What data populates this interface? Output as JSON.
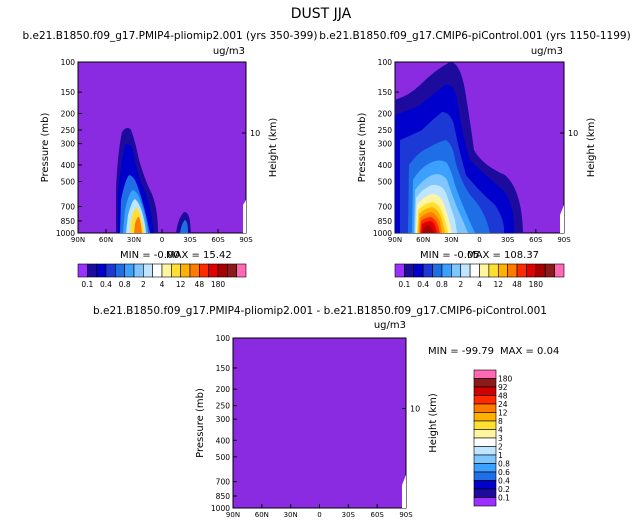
{
  "figure": {
    "title": "DUST JJA",
    "xticks": [
      "90N",
      "60N",
      "30N",
      "0",
      "30S",
      "60S",
      "90S"
    ],
    "yticks": [
      100,
      150,
      200,
      250,
      300,
      400,
      500,
      700,
      850,
      1000
    ],
    "ylabel": "Pressure (mb)",
    "right_label": "Height (km)",
    "right_tick": "10",
    "units": "ug/m3",
    "fill_color": "#8a2be2"
  },
  "colorbar": {
    "labels": [
      "0.1",
      "0.4",
      "0.8",
      "2",
      "4",
      "12",
      "48",
      "180"
    ],
    "colors": [
      "#9b30ff",
      "#1c0b9c",
      "#0000cd",
      "#1c39d6",
      "#1e6ee6",
      "#3ca0ff",
      "#7fc6ff",
      "#bfe5ff",
      "#ffffff",
      "#fff5a0",
      "#ffe030",
      "#ffb000",
      "#ff7b00",
      "#ff2a00",
      "#e00000",
      "#a80000",
      "#8b1a1a",
      "#ff69b4"
    ]
  },
  "colorbar_diff": {
    "labels": [
      "180",
      "92",
      "48",
      "24",
      "12",
      "8",
      "4",
      "3",
      "2",
      "1",
      "0.8",
      "0.6",
      "0.4",
      "0.2",
      "0.1"
    ],
    "colors": [
      "#ff69b4",
      "#8b1a1a",
      "#d00000",
      "#ff2a00",
      "#ff7b00",
      "#ffb000",
      "#ffe030",
      "#fff5a0",
      "#ffffff",
      "#bfe5ff",
      "#7fc6ff",
      "#3ca0ff",
      "#1e6ee6",
      "#0000cd",
      "#1c0b9c",
      "#9b30ff"
    ]
  },
  "chart_data": [
    {
      "type": "heatmap",
      "title": "b.e21.B1850.f09_g17.PMIP4-pliomip2.001 (yrs 350-399)",
      "xlabel": "",
      "ylabel": "Pressure (mb)",
      "units": "ug/m3",
      "min_label": "MIN =   -0.00",
      "max_label": "MAX =   15.42",
      "min": -0.0,
      "max": 15.42
    },
    {
      "type": "heatmap",
      "title": "b.e21.B1850.f09_g17.CMIP6-piControl.001 (yrs 1150-1199)",
      "xlabel": "",
      "ylabel": "Pressure (mb)",
      "units": "ug/m3",
      "min_label": "MIN =   -0.05",
      "max_label": "MAX =   108.37",
      "min": -0.05,
      "max": 108.37
    },
    {
      "type": "heatmap",
      "title": "b.e21.B1850.f09_g17.PMIP4-pliomip2.001 - b.e21.B1850.f09_g17.CMIP6-piControl.001",
      "xlabel": "",
      "ylabel": "Pressure (mb)",
      "units": "ug/m3",
      "min_label": "MIN = -99.79",
      "max_label": "MAX =    0.04",
      "min": -99.79,
      "max": 0.04
    }
  ]
}
